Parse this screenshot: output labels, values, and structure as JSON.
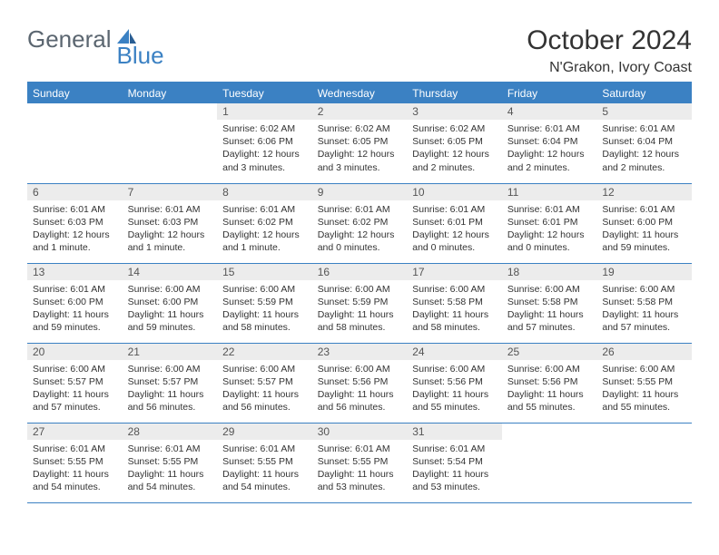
{
  "logo": {
    "word1": "General",
    "word2": "Blue"
  },
  "title": "October 2024",
  "location": "N'Grakon, Ivory Coast",
  "header_bg": "#3b81c3",
  "daynum_bg": "#ececec",
  "weekdays": [
    "Sunday",
    "Monday",
    "Tuesday",
    "Wednesday",
    "Thursday",
    "Friday",
    "Saturday"
  ],
  "grid": [
    [
      null,
      null,
      {
        "n": "1",
        "sr": "6:02 AM",
        "ss": "6:06 PM",
        "dl": "12 hours and 3 minutes."
      },
      {
        "n": "2",
        "sr": "6:02 AM",
        "ss": "6:05 PM",
        "dl": "12 hours and 3 minutes."
      },
      {
        "n": "3",
        "sr": "6:02 AM",
        "ss": "6:05 PM",
        "dl": "12 hours and 2 minutes."
      },
      {
        "n": "4",
        "sr": "6:01 AM",
        "ss": "6:04 PM",
        "dl": "12 hours and 2 minutes."
      },
      {
        "n": "5",
        "sr": "6:01 AM",
        "ss": "6:04 PM",
        "dl": "12 hours and 2 minutes."
      }
    ],
    [
      {
        "n": "6",
        "sr": "6:01 AM",
        "ss": "6:03 PM",
        "dl": "12 hours and 1 minute."
      },
      {
        "n": "7",
        "sr": "6:01 AM",
        "ss": "6:03 PM",
        "dl": "12 hours and 1 minute."
      },
      {
        "n": "8",
        "sr": "6:01 AM",
        "ss": "6:02 PM",
        "dl": "12 hours and 1 minute."
      },
      {
        "n": "9",
        "sr": "6:01 AM",
        "ss": "6:02 PM",
        "dl": "12 hours and 0 minutes."
      },
      {
        "n": "10",
        "sr": "6:01 AM",
        "ss": "6:01 PM",
        "dl": "12 hours and 0 minutes."
      },
      {
        "n": "11",
        "sr": "6:01 AM",
        "ss": "6:01 PM",
        "dl": "12 hours and 0 minutes."
      },
      {
        "n": "12",
        "sr": "6:01 AM",
        "ss": "6:00 PM",
        "dl": "11 hours and 59 minutes."
      }
    ],
    [
      {
        "n": "13",
        "sr": "6:01 AM",
        "ss": "6:00 PM",
        "dl": "11 hours and 59 minutes."
      },
      {
        "n": "14",
        "sr": "6:00 AM",
        "ss": "6:00 PM",
        "dl": "11 hours and 59 minutes."
      },
      {
        "n": "15",
        "sr": "6:00 AM",
        "ss": "5:59 PM",
        "dl": "11 hours and 58 minutes."
      },
      {
        "n": "16",
        "sr": "6:00 AM",
        "ss": "5:59 PM",
        "dl": "11 hours and 58 minutes."
      },
      {
        "n": "17",
        "sr": "6:00 AM",
        "ss": "5:58 PM",
        "dl": "11 hours and 58 minutes."
      },
      {
        "n": "18",
        "sr": "6:00 AM",
        "ss": "5:58 PM",
        "dl": "11 hours and 57 minutes."
      },
      {
        "n": "19",
        "sr": "6:00 AM",
        "ss": "5:58 PM",
        "dl": "11 hours and 57 minutes."
      }
    ],
    [
      {
        "n": "20",
        "sr": "6:00 AM",
        "ss": "5:57 PM",
        "dl": "11 hours and 57 minutes."
      },
      {
        "n": "21",
        "sr": "6:00 AM",
        "ss": "5:57 PM",
        "dl": "11 hours and 56 minutes."
      },
      {
        "n": "22",
        "sr": "6:00 AM",
        "ss": "5:57 PM",
        "dl": "11 hours and 56 minutes."
      },
      {
        "n": "23",
        "sr": "6:00 AM",
        "ss": "5:56 PM",
        "dl": "11 hours and 56 minutes."
      },
      {
        "n": "24",
        "sr": "6:00 AM",
        "ss": "5:56 PM",
        "dl": "11 hours and 55 minutes."
      },
      {
        "n": "25",
        "sr": "6:00 AM",
        "ss": "5:56 PM",
        "dl": "11 hours and 55 minutes."
      },
      {
        "n": "26",
        "sr": "6:00 AM",
        "ss": "5:55 PM",
        "dl": "11 hours and 55 minutes."
      }
    ],
    [
      {
        "n": "27",
        "sr": "6:01 AM",
        "ss": "5:55 PM",
        "dl": "11 hours and 54 minutes."
      },
      {
        "n": "28",
        "sr": "6:01 AM",
        "ss": "5:55 PM",
        "dl": "11 hours and 54 minutes."
      },
      {
        "n": "29",
        "sr": "6:01 AM",
        "ss": "5:55 PM",
        "dl": "11 hours and 54 minutes."
      },
      {
        "n": "30",
        "sr": "6:01 AM",
        "ss": "5:55 PM",
        "dl": "11 hours and 53 minutes."
      },
      {
        "n": "31",
        "sr": "6:01 AM",
        "ss": "5:54 PM",
        "dl": "11 hours and 53 minutes."
      },
      null,
      null
    ]
  ],
  "labels": {
    "sunrise": "Sunrise: ",
    "sunset": "Sunset: ",
    "daylight": "Daylight: "
  }
}
